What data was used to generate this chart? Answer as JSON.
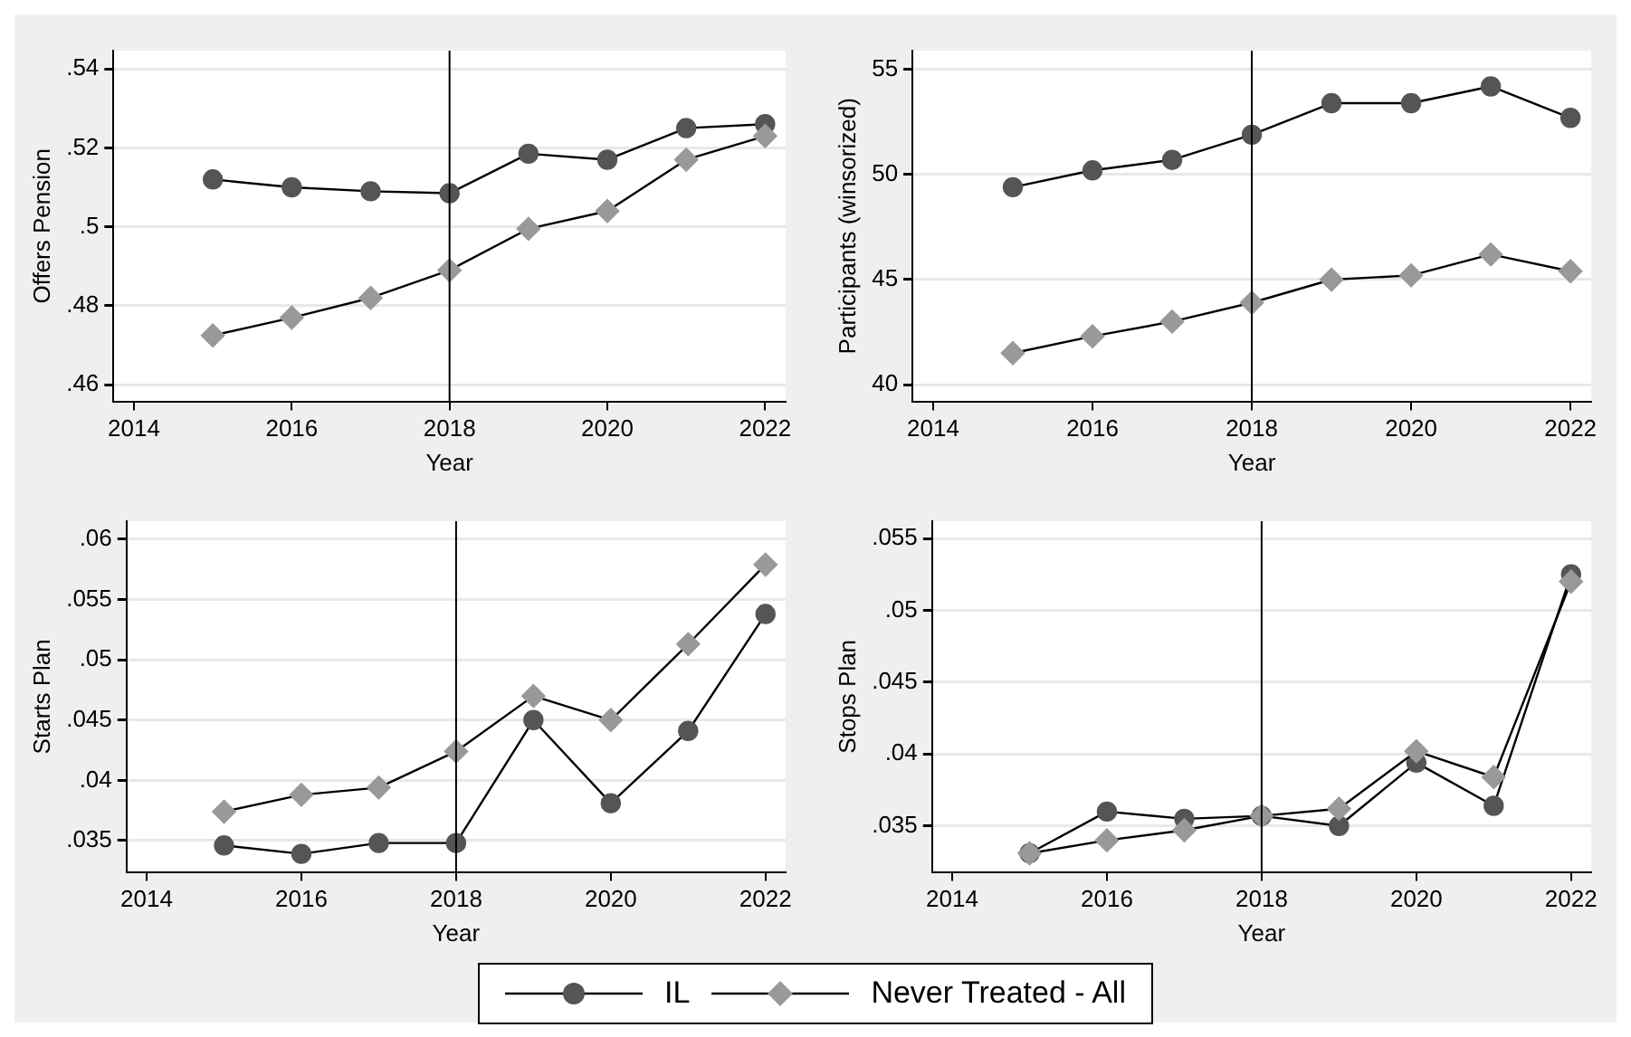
{
  "chart_data": [
    {
      "type": "line",
      "xlabel": "Year",
      "ylabel": "Offers Pension",
      "x": [
        2015,
        2016,
        2017,
        2018,
        2019,
        2020,
        2021,
        2022
      ],
      "xlim": [
        2013.74,
        2022.26
      ],
      "xticks": [
        2014,
        2016,
        2018,
        2020,
        2022
      ],
      "ylim": [
        0.4558,
        0.5446
      ],
      "yticks": [
        {
          "value": 0.46,
          "label": ".46"
        },
        {
          "value": 0.48,
          "label": ".48"
        },
        {
          "value": 0.5,
          "label": ".5"
        },
        {
          "value": 0.52,
          "label": ".52"
        },
        {
          "value": 0.54,
          "label": ".54"
        }
      ],
      "grid": "y",
      "legend": "bottom",
      "ref_lines": [
        {
          "axis": "x",
          "value": 2018,
          "color": "#000000"
        }
      ],
      "series": [
        {
          "name": "IL",
          "color": "#555555",
          "marker": "circle",
          "values": [
            0.512,
            0.51,
            0.509,
            0.5085,
            0.5185,
            0.517,
            0.525,
            0.526
          ]
        },
        {
          "name": "Never Treated - All",
          "color": "#999999",
          "marker": "diamond",
          "values": [
            0.4725,
            0.477,
            0.482,
            0.489,
            0.4995,
            0.504,
            0.517,
            0.523
          ]
        }
      ]
    },
    {
      "type": "line",
      "xlabel": "Year",
      "ylabel": "Participants (winsorized)",
      "x": [
        2015,
        2016,
        2017,
        2018,
        2019,
        2020,
        2021,
        2022
      ],
      "xlim": [
        2013.74,
        2022.26
      ],
      "xticks": [
        2014,
        2016,
        2018,
        2020,
        2022
      ],
      "ylim": [
        39.2,
        55.9
      ],
      "yticks": [
        40,
        45,
        50,
        55
      ],
      "grid": "y",
      "ref_lines": [
        {
          "axis": "x",
          "value": 2018,
          "color": "#000000"
        }
      ],
      "series": [
        {
          "color": "#555555",
          "marker": "circle",
          "values": [
            49.4,
            50.2,
            50.7,
            51.9,
            53.4,
            53.4,
            54.2,
            52.7
          ]
        },
        {
          "color": "#999999",
          "marker": "diamond",
          "values": [
            41.5,
            42.3,
            43.0,
            43.9,
            45.0,
            45.2,
            46.2,
            45.4
          ]
        }
      ]
    },
    {
      "type": "line",
      "xlabel": "Year",
      "ylabel": "Starts Plan",
      "x": [
        2015,
        2016,
        2017,
        2018,
        2019,
        2020,
        2021,
        2022
      ],
      "xlim": [
        2013.74,
        2022.26
      ],
      "xticks": [
        2014,
        2016,
        2018,
        2020,
        2022
      ],
      "ylim": [
        0.0324,
        0.0615
      ],
      "yticks": [
        {
          "value": 0.035,
          "label": ".035"
        },
        {
          "value": 0.04,
          "label": ".04"
        },
        {
          "value": 0.045,
          "label": ".045"
        },
        {
          "value": 0.05,
          "label": ".05"
        },
        {
          "value": 0.055,
          "label": ".055"
        },
        {
          "value": 0.06,
          "label": ".06"
        }
      ],
      "grid": "y",
      "ref_lines": [
        {
          "axis": "x",
          "value": 2018,
          "color": "#000000"
        }
      ],
      "series": [
        {
          "color": "#555555",
          "marker": "circle",
          "values": [
            0.0346,
            0.0339,
            0.0348,
            0.0348,
            0.045,
            0.0381,
            0.0441,
            0.0538
          ]
        },
        {
          "color": "#999999",
          "marker": "diamond",
          "values": [
            0.0374,
            0.0388,
            0.0394,
            0.0424,
            0.047,
            0.045,
            0.0513,
            0.0579
          ]
        }
      ]
    },
    {
      "type": "line",
      "xlabel": "Year",
      "ylabel": "Stops Plan",
      "x": [
        2015,
        2016,
        2017,
        2018,
        2019,
        2020,
        2021,
        2022
      ],
      "xlim": [
        2013.74,
        2022.26
      ],
      "xticks": [
        2014,
        2016,
        2018,
        2020,
        2022
      ],
      "ylim": [
        0.0318,
        0.0562
      ],
      "yticks": [
        {
          "value": 0.035,
          "label": ".035"
        },
        {
          "value": 0.04,
          "label": ".04"
        },
        {
          "value": 0.045,
          "label": ".045"
        },
        {
          "value": 0.05,
          "label": ".05"
        },
        {
          "value": 0.055,
          "label": ".055"
        }
      ],
      "grid": "y",
      "ref_lines": [
        {
          "axis": "x",
          "value": 2018,
          "color": "#000000"
        }
      ],
      "series": [
        {
          "color": "#555555",
          "marker": "circle",
          "values": [
            0.0331,
            0.036,
            0.0355,
            0.0357,
            0.035,
            0.0394,
            0.0364,
            0.0525
          ]
        },
        {
          "color": "#999999",
          "marker": "diamond",
          "values": [
            0.0331,
            0.034,
            0.0347,
            0.0357,
            0.0362,
            0.0402,
            0.0384,
            0.052
          ]
        }
      ]
    }
  ]
}
